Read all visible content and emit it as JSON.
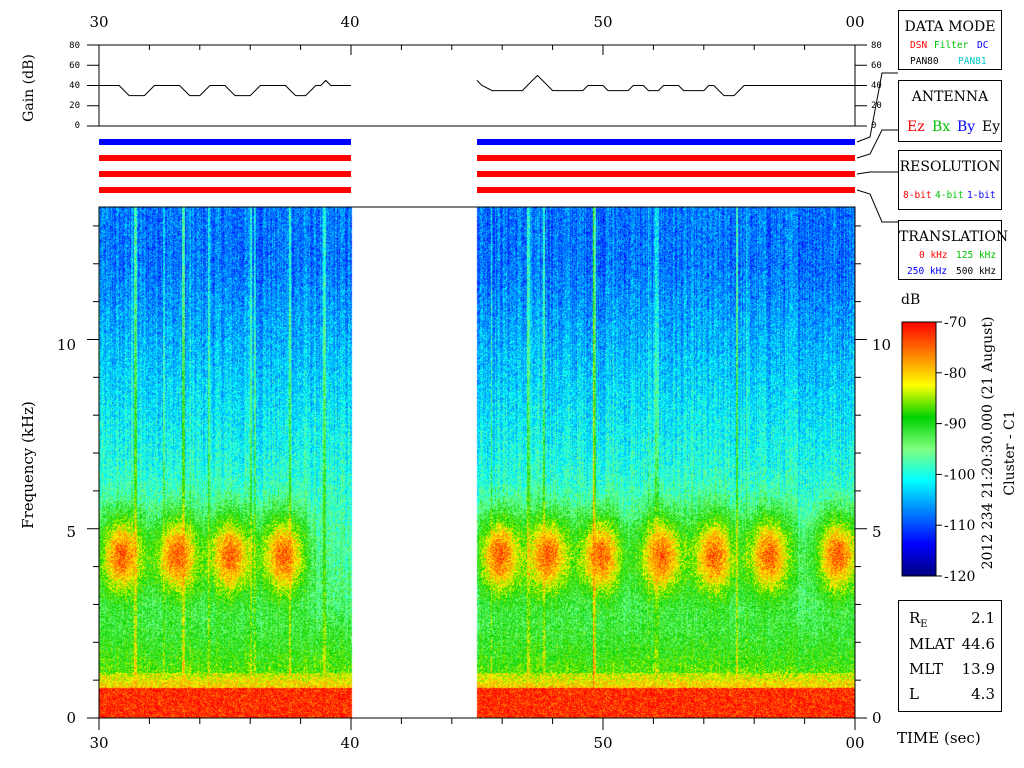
{
  "chart_data": {
    "type": "heatmap",
    "title": "",
    "time_axis": {
      "tick_labels": [
        "30",
        "40",
        "50",
        "00"
      ],
      "range_sec": [
        30,
        60
      ],
      "label": "TIME (sec)"
    },
    "gain_panel": {
      "ylabel": "Gain (dB)",
      "tick_labels": [
        "0",
        "20",
        "40",
        "60",
        "80"
      ],
      "ylim": [
        0,
        80
      ],
      "segments": [
        {
          "t0": 30.0,
          "t1": 40.0,
          "points": [
            [
              30.0,
              40
            ],
            [
              30.8,
              40
            ],
            [
              31.0,
              35
            ],
            [
              31.2,
              30
            ],
            [
              31.8,
              30
            ],
            [
              32.0,
              35
            ],
            [
              32.2,
              40
            ],
            [
              33.2,
              40
            ],
            [
              33.4,
              35
            ],
            [
              33.6,
              30
            ],
            [
              34.0,
              30
            ],
            [
              34.2,
              35
            ],
            [
              34.4,
              40
            ],
            [
              35.0,
              40
            ],
            [
              35.2,
              35
            ],
            [
              35.4,
              30
            ],
            [
              36.0,
              30
            ],
            [
              36.2,
              35
            ],
            [
              36.4,
              40
            ],
            [
              37.4,
              40
            ],
            [
              37.6,
              35
            ],
            [
              37.8,
              30
            ],
            [
              38.2,
              30
            ],
            [
              38.4,
              35
            ],
            [
              38.6,
              40
            ],
            [
              38.8,
              40
            ],
            [
              39.0,
              45
            ],
            [
              39.2,
              40
            ],
            [
              40.0,
              40
            ]
          ]
        },
        {
          "t0": 45.0,
          "t1": 60.0,
          "points": [
            [
              45.0,
              45
            ],
            [
              45.2,
              40
            ],
            [
              45.6,
              35
            ],
            [
              46.8,
              35
            ],
            [
              47.0,
              40
            ],
            [
              47.2,
              45
            ],
            [
              47.4,
              50
            ],
            [
              47.6,
              45
            ],
            [
              47.8,
              40
            ],
            [
              48.0,
              35
            ],
            [
              49.2,
              35
            ],
            [
              49.4,
              40
            ],
            [
              50.0,
              40
            ],
            [
              50.2,
              35
            ],
            [
              51.0,
              35
            ],
            [
              51.2,
              40
            ],
            [
              51.6,
              40
            ],
            [
              51.8,
              35
            ],
            [
              52.2,
              35
            ],
            [
              52.4,
              40
            ],
            [
              53.0,
              40
            ],
            [
              53.2,
              35
            ],
            [
              54.0,
              35
            ],
            [
              54.2,
              40
            ],
            [
              54.4,
              40
            ],
            [
              54.6,
              35
            ],
            [
              54.8,
              30
            ],
            [
              55.2,
              30
            ],
            [
              55.4,
              35
            ],
            [
              55.6,
              40
            ],
            [
              60.0,
              40
            ]
          ]
        }
      ]
    },
    "status_bars": {
      "segments_sec": [
        [
          30,
          40
        ],
        [
          45,
          60
        ]
      ],
      "rows": [
        {
          "name": "data_mode",
          "color": "#0000ff"
        },
        {
          "name": "antenna",
          "color": "#ff0000"
        },
        {
          "name": "resolution",
          "color": "#ff0000"
        },
        {
          "name": "translation",
          "color": "#ff0000"
        }
      ]
    },
    "spectrogram": {
      "ylabel": "Frequency (kHz)",
      "ytick_labels": [
        "0",
        "5",
        "10"
      ],
      "ylim_khz": [
        0,
        13.5
      ],
      "data_segments_sec": [
        [
          30,
          40
        ],
        [
          45,
          60
        ]
      ],
      "gap_sec": [
        40,
        45
      ],
      "features": [
        {
          "kind": "low_freq_band",
          "f_khz": [
            0,
            0.8
          ],
          "level_db": -72
        },
        {
          "kind": "chorus_blobs",
          "f_khz": [
            3.0,
            5.5
          ],
          "centers_sec": [
            30.9,
            33.1,
            35.2,
            37.3,
            45.9,
            47.8,
            49.9,
            52.3,
            54.4,
            56.6,
            59.3
          ],
          "level_db": -76
        },
        {
          "kind": "broadband_background",
          "level_db_low": -90,
          "level_db_high": -108
        }
      ]
    },
    "colorbar": {
      "label": "dB",
      "tick_labels": [
        "-70",
        "-80",
        "-90",
        "-100",
        "-110",
        "-120"
      ],
      "range_db": [
        -120,
        -70
      ],
      "colors": [
        "#00007f",
        "#0000ff",
        "#007fff",
        "#00ffff",
        "#7fff7f",
        "#00d200",
        "#ffff00",
        "#ff7f00",
        "#ff0000"
      ]
    }
  },
  "legend": {
    "data_mode": {
      "title": "DATA MODE",
      "items": [
        {
          "text": "DSN",
          "color": "#ff0000"
        },
        {
          "text": "Filter",
          "color": "#00c000"
        },
        {
          "text": "DC",
          "color": "#0000ff"
        },
        {
          "text": "PAN80",
          "color": "#000000"
        },
        {
          "text": "PAN81",
          "color": "#00c8c8"
        }
      ]
    },
    "antenna": {
      "title": "ANTENNA",
      "items": [
        {
          "text": "Ez",
          "color": "#ff0000"
        },
        {
          "text": "Bx",
          "color": "#00c000"
        },
        {
          "text": "By",
          "color": "#0000ff"
        },
        {
          "text": "Ey",
          "color": "#000000"
        }
      ]
    },
    "resolution": {
      "title": "RESOLUTION",
      "items": [
        {
          "text": "8-bit",
          "color": "#ff0000"
        },
        {
          "text": "4-bit",
          "color": "#00c000"
        },
        {
          "text": "1-bit",
          "color": "#0000ff"
        }
      ]
    },
    "translation": {
      "title": "TRANSLATION",
      "items": [
        {
          "text": "0 kHz",
          "color": "#ff0000"
        },
        {
          "text": "125 kHz",
          "color": "#00c000"
        },
        {
          "text": "250 kHz",
          "color": "#0000ff"
        },
        {
          "text": "500 kHz",
          "color": "#000000"
        }
      ]
    }
  },
  "side_label": "2012 234 21:20:30.000 (21 August)",
  "spacecraft": "Cluster - C1",
  "ephemeris": {
    "re_label": "R",
    "re_sub": "E",
    "re_value": "2.1",
    "mlat_label": "MLAT",
    "mlat_value": "44.6",
    "mlt_label": "MLT",
    "mlt_value": "13.9",
    "l_label": "L",
    "l_value": "4.3"
  }
}
